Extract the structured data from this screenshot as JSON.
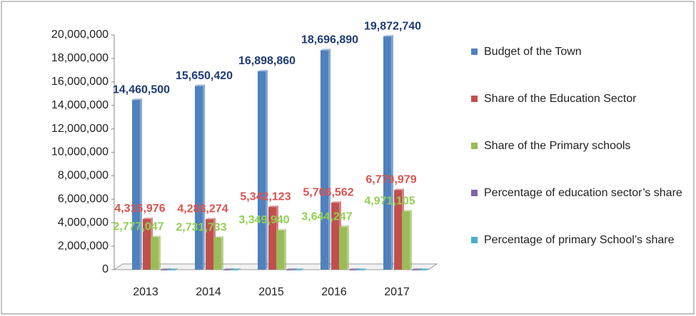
{
  "chart_data": {
    "type": "bar",
    "categories": [
      "2013",
      "2014",
      "2015",
      "2016",
      "2017"
    ],
    "series": [
      {
        "name": "Budget of the Town",
        "color": "#4f81bd",
        "label_color": "#1f3c74",
        "values": [
          14460500,
          15650420,
          16898860,
          18696890,
          19872740
        ],
        "value_labels": [
          "14,460,500",
          "15,650,420",
          "16,898,860",
          "18,696,890",
          "19,872,740"
        ]
      },
      {
        "name": "Share of the Education Sector",
        "color": "#c0504d",
        "label_color": "#d9534f",
        "values": [
          4316976,
          4288274,
          5342123,
          5706562,
          6779979
        ],
        "value_labels": [
          "4,316,976",
          "4,288,274",
          "5,342,123",
          "5,706,562",
          "6,779,979"
        ]
      },
      {
        "name": "Share of the Primary schools",
        "color": "#9bbb59",
        "label_color": "#92d050",
        "values": [
          2777047,
          2731733,
          3349940,
          3644247,
          4971105
        ],
        "value_labels": [
          "2,777,047",
          "2,731,733",
          "3,349,940",
          "3,644,247",
          "4,971,105"
        ]
      },
      {
        "name": "Percentage of education sector’s share",
        "color": "#8064a2",
        "values": [
          0,
          0,
          0,
          0,
          0
        ]
      },
      {
        "name": "Percentage of primary School’s share",
        "color": "#4bacc6",
        "values": [
          0,
          0,
          0,
          0,
          0
        ]
      }
    ],
    "ylim": [
      0,
      20000000
    ],
    "yticks": [
      0,
      {
        "value": 2000000,
        "label": "2,000,000"
      },
      {
        "value": 4000000,
        "label": "4,000,000"
      },
      {
        "value": 6000000,
        "label": "6,000,000"
      },
      {
        "value": 8000000,
        "label": "8,000,000"
      },
      {
        "value": 10000000,
        "label": "10,000,000"
      },
      {
        "value": 12000000,
        "label": "12,000,000"
      },
      {
        "value": 14000000,
        "label": "14,000,000"
      },
      {
        "value": 16000000,
        "label": "16,000,000"
      },
      {
        "value": 18000000,
        "label": "18,000,000"
      },
      {
        "value": 20000000,
        "label": "20,000,000"
      }
    ],
    "legend": "right"
  }
}
